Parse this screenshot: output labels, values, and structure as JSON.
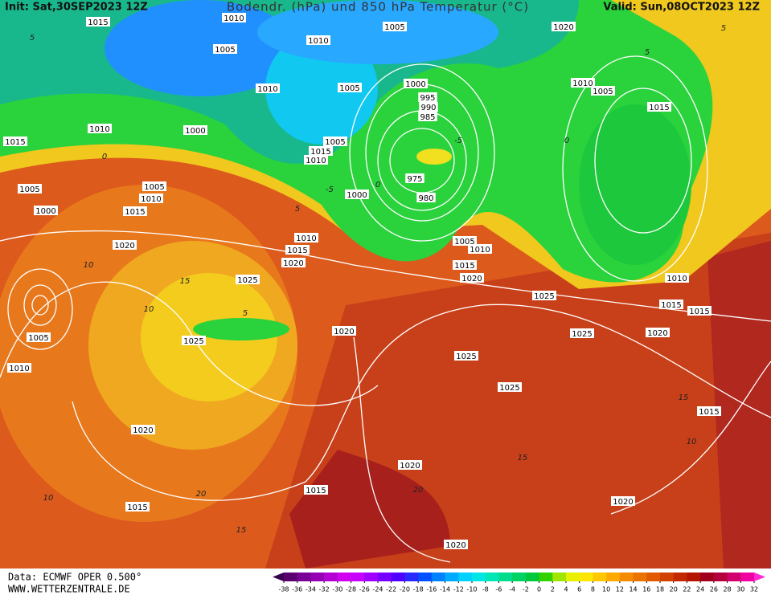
{
  "header": {
    "init": "Init: Sat,30SEP2023 12Z",
    "title": "Bodendr. (hPa) und 850 hPa Temperatur (°C)",
    "valid": "Valid: Sun,08OCT2023 12Z"
  },
  "footer": {
    "data": "Data: ECMWF OPER 0.500°",
    "website": "WWW.WETTERZENTRALE.DE"
  },
  "isobar_labels": [
    "1015",
    "1010",
    "1005",
    "1020",
    "1010",
    "1005",
    "1010",
    "1005",
    "1000",
    "995",
    "990",
    "985",
    "1010",
    "1005",
    "1015",
    "1010",
    "1000",
    "1015",
    "1005",
    "1015",
    "1010",
    "975",
    "980",
    "1005",
    "1005",
    "1010",
    "1000",
    "1000",
    "1015",
    "1010",
    "1005",
    "1010",
    "1015",
    "1020",
    "1020",
    "1015",
    "1020",
    "1025",
    "1010",
    "1025",
    "1015",
    "1015",
    "1005",
    "1020",
    "1025",
    "1025",
    "1020",
    "1010",
    "1025",
    "1025",
    "1020",
    "1015",
    "1020",
    "1015",
    "1015",
    "1020",
    "1020"
  ],
  "isotherm_labels": [
    "5",
    "0",
    "-5",
    "0",
    "5",
    "10",
    "15",
    "10",
    "5",
    "-5",
    "0",
    "5",
    "5",
    "10",
    "15",
    "20",
    "15",
    "10",
    "15",
    "20"
  ],
  "legend": {
    "labels": [
      -38,
      -36,
      -34,
      -32,
      -30,
      -28,
      -26,
      -24,
      -22,
      -20,
      -18,
      -16,
      -14,
      -12,
      -10,
      -8,
      -6,
      -4,
      -2,
      0,
      2,
      4,
      6,
      8,
      10,
      12,
      14,
      16,
      18,
      20,
      22,
      24,
      26,
      28,
      30,
      32
    ],
    "colors": [
      "#3c0050",
      "#5a006e",
      "#780096",
      "#9600b4",
      "#b400d2",
      "#d200f0",
      "#c800ff",
      "#a000ff",
      "#7800ff",
      "#5000ff",
      "#2828ff",
      "#0050ff",
      "#0082ff",
      "#00aaff",
      "#00d2ff",
      "#00e6e6",
      "#00e6b4",
      "#00dc8c",
      "#00d264",
      "#00c83c",
      "#32d200",
      "#a0e600",
      "#e6f000",
      "#ffe600",
      "#ffc800",
      "#ffaa00",
      "#f58c00",
      "#eb7300",
      "#e15a00",
      "#d24100",
      "#c32800",
      "#b41400",
      "#a0001e",
      "#b4003c",
      "#d2006e",
      "#f000a0",
      "#ff28d2"
    ]
  }
}
